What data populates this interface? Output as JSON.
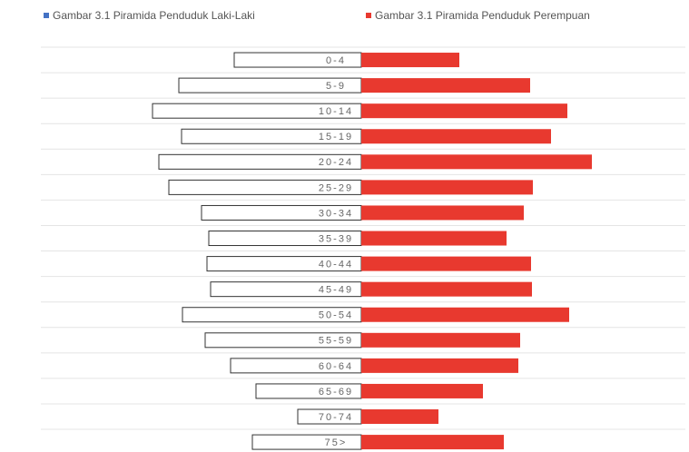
{
  "chart_data": {
    "type": "pyramid",
    "categories": [
      "0-4",
      "5-9",
      "10-14",
      "15-19",
      "20-24",
      "25-29",
      "30-34",
      "35-39",
      "40-44",
      "45-49",
      "50-54",
      "55-59",
      "60-64",
      "65-69",
      "70-74",
      "75>"
    ],
    "series": [
      {
        "name": "Gambar 3.1 Piramida Penduduk Laki-Laki",
        "color": "#4472c4",
        "values": [
          140,
          201,
          230,
          198,
          223,
          212,
          176,
          168,
          170,
          166,
          197,
          172,
          144,
          116,
          70,
          120
        ]
      },
      {
        "name": "Gambar 3.1 Piramida Penduduk Perempuan",
        "color": "#e8392f",
        "values": [
          108,
          186,
          227,
          209,
          254,
          189,
          179,
          160,
          187,
          188,
          229,
          175,
          173,
          134,
          85,
          157
        ]
      }
    ],
    "grid": true
  }
}
